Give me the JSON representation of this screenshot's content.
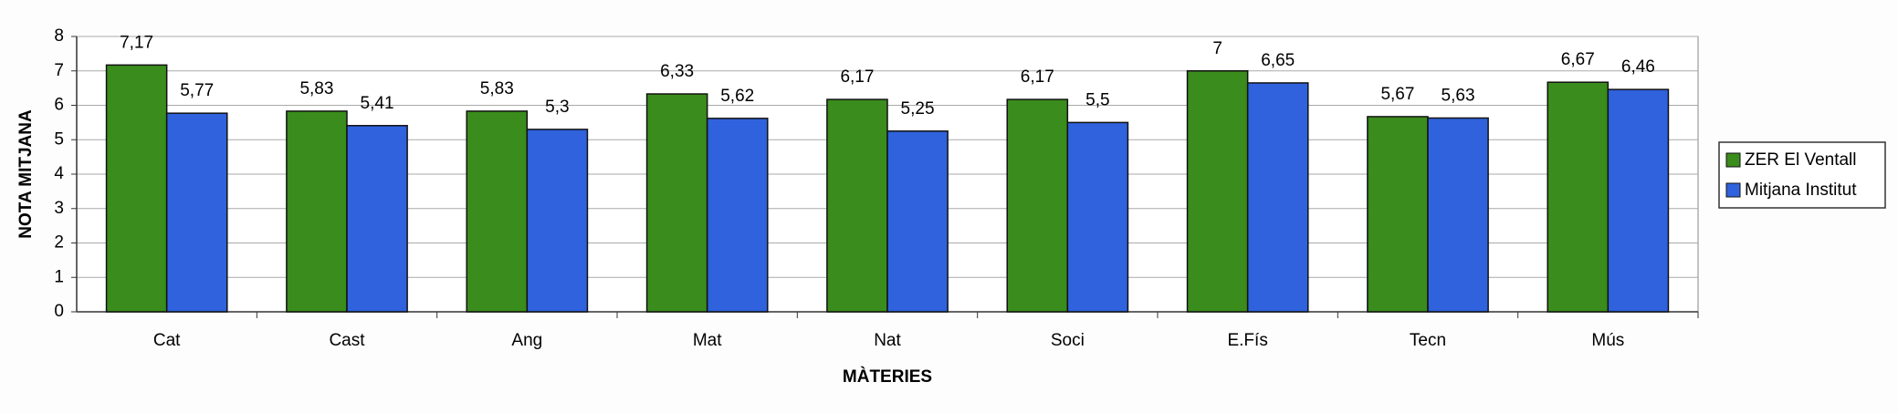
{
  "chart_data": {
    "type": "bar",
    "x_label": "MÀTERIES",
    "y_label": "NOTA MITJANA",
    "categories": [
      "Cat",
      "Cast",
      "Ang",
      "Mat",
      "Nat",
      "Soci",
      "E.Fís",
      "Tecn",
      "Mús"
    ],
    "series": [
      {
        "name": "ZER El Ventall",
        "color": "#3a8c1c",
        "values": [
          7.17,
          5.83,
          5.83,
          6.33,
          6.17,
          6.17,
          7,
          5.67,
          6.67
        ],
        "value_labels": [
          "7,17",
          "5,83",
          "5,83",
          "6,33",
          "6,17",
          "6,17",
          "7",
          "5,67",
          "6,67"
        ]
      },
      {
        "name": "Mitjana Institut",
        "color": "#2f62dc",
        "values": [
          5.77,
          5.41,
          5.3,
          5.62,
          5.25,
          5.5,
          6.65,
          5.63,
          6.46
        ],
        "value_labels": [
          "5,77",
          "5,41",
          "5,3",
          "5,62",
          "5,25",
          "5,5",
          "6,65",
          "5,63",
          "6,46"
        ]
      }
    ],
    "ylim": [
      0,
      8
    ],
    "yticks": [
      0,
      1,
      2,
      3,
      4,
      5,
      6,
      7,
      8
    ],
    "grid": true,
    "legend": "right"
  }
}
